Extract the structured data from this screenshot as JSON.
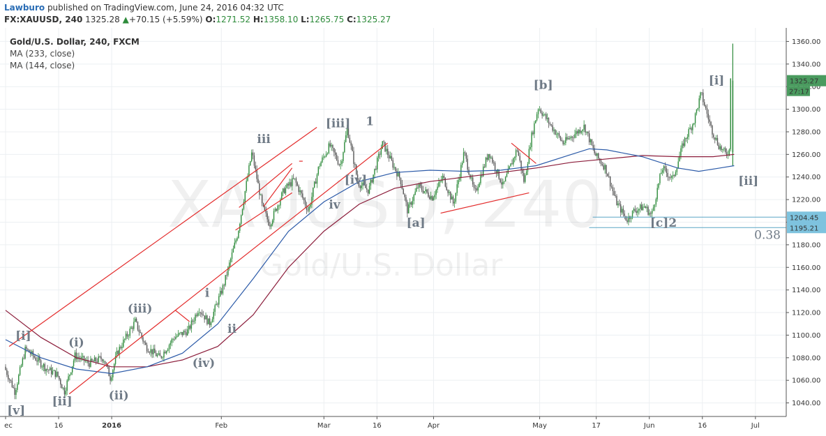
{
  "header": {
    "author": "Lawburo",
    "published_text": " published on TradingView.com, June 24, 2016 04:32 UTC",
    "symbol": "FX:XAUUSD, 240",
    "last": "1325.28",
    "change": "+70.15 (+5.59%)",
    "open_label": "O:",
    "open": "1271.52",
    "high_label": "H:",
    "high": "1358.10",
    "low_label": "L:",
    "low": "1265.75",
    "close_label": "C:",
    "close": "1325.27"
  },
  "legend": {
    "title": "Gold/U.S. Dollar, 240, FXCM",
    "ma1": "MA (233, close)",
    "ma2": "MA (144, close)"
  },
  "watermark": {
    "symbol": "XAUUSD, 240",
    "name": "Gold/U.S. Dollar"
  },
  "colors": {
    "candle_up": "#2e8b3b",
    "candle_down": "#555555",
    "ma233": "#8b1c3a",
    "ma144": "#2b5aa8",
    "trend": "#e32b2b",
    "level": "#5aa6c6",
    "price_tag": "#4a9b5f",
    "level_tag": "#7ec3de"
  },
  "chart_data": {
    "type": "candlestick",
    "title": "Gold/U.S. Dollar, 240, FXCM",
    "x_ticks": [
      {
        "label": "ec",
        "d": 0
      },
      {
        "label": "16",
        "d": 15
      },
      {
        "label": "2016",
        "d": 30
      },
      {
        "label": "Feb",
        "d": 61
      },
      {
        "label": "Mar",
        "d": 90
      },
      {
        "label": "16",
        "d": 105
      },
      {
        "label": "Apr",
        "d": 121
      },
      {
        "label": "May",
        "d": 151
      },
      {
        "label": "17",
        "d": 167
      },
      {
        "label": "Jun",
        "d": 182
      },
      {
        "label": "16",
        "d": 197
      },
      {
        "label": "Jul",
        "d": 212
      }
    ],
    "y_ticks": [
      1040,
      1060,
      1080,
      1100,
      1120,
      1140,
      1160,
      1180,
      1200,
      1220,
      1240,
      1260,
      1280,
      1300,
      1320,
      1340,
      1360
    ],
    "ylim": [
      1028,
      1372
    ],
    "xlim_days": [
      0,
      225
    ],
    "price_path": [
      [
        0,
        1072
      ],
      [
        3,
        1050
      ],
      [
        6,
        1088
      ],
      [
        12,
        1070
      ],
      [
        15,
        1065
      ],
      [
        17,
        1050
      ],
      [
        20,
        1082
      ],
      [
        24,
        1075
      ],
      [
        28,
        1080
      ],
      [
        30,
        1062
      ],
      [
        32,
        1085
      ],
      [
        37,
        1112
      ],
      [
        40,
        1090
      ],
      [
        44,
        1080
      ],
      [
        48,
        1098
      ],
      [
        52,
        1104
      ],
      [
        55,
        1124
      ],
      [
        58,
        1110
      ],
      [
        62,
        1144
      ],
      [
        66,
        1190
      ],
      [
        70,
        1262
      ],
      [
        73,
        1213
      ],
      [
        75,
        1198
      ],
      [
        79,
        1228
      ],
      [
        82,
        1238
      ],
      [
        86,
        1210
      ],
      [
        89,
        1250
      ],
      [
        92,
        1268
      ],
      [
        95,
        1250
      ],
      [
        97,
        1283
      ],
      [
        100,
        1235
      ],
      [
        103,
        1228
      ],
      [
        107,
        1270
      ],
      [
        110,
        1250
      ],
      [
        112,
        1238
      ],
      [
        114,
        1210
      ],
      [
        117,
        1232
      ],
      [
        121,
        1222
      ],
      [
        124,
        1240
      ],
      [
        127,
        1216
      ],
      [
        130,
        1262
      ],
      [
        133,
        1225
      ],
      [
        137,
        1262
      ],
      [
        141,
        1232
      ],
      [
        145,
        1265
      ],
      [
        147,
        1235
      ],
      [
        149,
        1275
      ],
      [
        151,
        1302
      ],
      [
        154,
        1288
      ],
      [
        158,
        1270
      ],
      [
        162,
        1280
      ],
      [
        164,
        1285
      ],
      [
        167,
        1260
      ],
      [
        170,
        1248
      ],
      [
        173,
        1218
      ],
      [
        176,
        1202
      ],
      [
        178,
        1210
      ],
      [
        181,
        1214
      ],
      [
        183,
        1206
      ],
      [
        186,
        1248
      ],
      [
        189,
        1238
      ],
      [
        192,
        1270
      ],
      [
        195,
        1290
      ],
      [
        197,
        1314
      ],
      [
        200,
        1282
      ],
      [
        202,
        1268
      ],
      [
        204,
        1260
      ],
      [
        205,
        1264
      ],
      [
        205.5,
        1358
      ],
      [
        205.7,
        1325
      ]
    ],
    "ma144": [
      [
        0,
        1096
      ],
      [
        10,
        1080
      ],
      [
        20,
        1070
      ],
      [
        30,
        1066
      ],
      [
        40,
        1072
      ],
      [
        50,
        1084
      ],
      [
        60,
        1110
      ],
      [
        70,
        1150
      ],
      [
        80,
        1192
      ],
      [
        90,
        1218
      ],
      [
        100,
        1236
      ],
      [
        110,
        1244
      ],
      [
        120,
        1246
      ],
      [
        130,
        1245
      ],
      [
        140,
        1246
      ],
      [
        150,
        1250
      ],
      [
        160,
        1260
      ],
      [
        165,
        1265
      ],
      [
        170,
        1264
      ],
      [
        180,
        1258
      ],
      [
        190,
        1248
      ],
      [
        196,
        1245
      ],
      [
        202,
        1248
      ],
      [
        206,
        1250
      ]
    ],
    "ma233": [
      [
        0,
        1122
      ],
      [
        10,
        1098
      ],
      [
        20,
        1080
      ],
      [
        30,
        1072
      ],
      [
        40,
        1072
      ],
      [
        50,
        1078
      ],
      [
        60,
        1090
      ],
      [
        70,
        1118
      ],
      [
        80,
        1160
      ],
      [
        90,
        1192
      ],
      [
        100,
        1216
      ],
      [
        110,
        1230
      ],
      [
        120,
        1236
      ],
      [
        130,
        1240
      ],
      [
        140,
        1244
      ],
      [
        150,
        1248
      ],
      [
        160,
        1253
      ],
      [
        170,
        1256
      ],
      [
        180,
        1259
      ],
      [
        190,
        1258
      ],
      [
        200,
        1258
      ],
      [
        206,
        1260
      ]
    ],
    "trendlines": [
      [
        [
          1,
          1090
        ],
        [
          88,
          1284
        ]
      ],
      [
        [
          18,
          1048
        ],
        [
          108,
          1270
        ]
      ],
      [
        [
          84,
          1254
        ],
        [
          83,
          1254
        ]
      ],
      [
        [
          65,
          1193
        ],
        [
          81,
          1226
        ]
      ],
      [
        [
          66,
          1213
        ],
        [
          81,
          1252
        ]
      ],
      [
        [
          73,
          1214
        ],
        [
          81,
          1248
        ]
      ],
      [
        [
          48,
          1122
        ],
        [
          52,
          1112
        ]
      ],
      [
        [
          123,
          1208
        ],
        [
          148,
          1226
        ]
      ],
      [
        [
          143,
          1270
        ],
        [
          150,
          1252
        ]
      ]
    ],
    "levels": [
      {
        "price": 1204.45,
        "from_day": 166,
        "label": "1204.45"
      },
      {
        "price": 1195.21,
        "from_day": 165,
        "label": "1195.21",
        "note": "0.38"
      }
    ],
    "last_price": {
      "price": 1325.27,
      "label": "1325.27",
      "timer": "27:17"
    },
    "wave_labels": [
      {
        "text": "[v]",
        "d": 3,
        "p": 1030
      },
      {
        "text": "[i]",
        "d": 5,
        "p": 1096
      },
      {
        "text": "[ii]",
        "d": 16,
        "p": 1038
      },
      {
        "text": "(i)",
        "d": 20,
        "p": 1090
      },
      {
        "text": "(ii)",
        "d": 32,
        "p": 1043
      },
      {
        "text": "(iii)",
        "d": 38,
        "p": 1120
      },
      {
        "text": "(iv)",
        "d": 56,
        "p": 1072
      },
      {
        "text": "i",
        "d": 57,
        "p": 1134
      },
      {
        "text": "ii",
        "d": 64,
        "p": 1102
      },
      {
        "text": "iii",
        "d": 73,
        "p": 1270
      },
      {
        "text": "iv",
        "d": 93,
        "p": 1212
      },
      {
        "text": "[iii]",
        "d": 94,
        "p": 1284
      },
      {
        "text": "1",
        "d": 103,
        "p": 1286
      },
      {
        "text": "[iv]",
        "d": 99,
        "p": 1234
      },
      {
        "text": "[a]",
        "d": 116,
        "p": 1196
      },
      {
        "text": "[b]",
        "d": 152,
        "p": 1318
      },
      {
        "text": "[c]2",
        "d": 186,
        "p": 1196
      },
      {
        "text": "[i]",
        "d": 201,
        "p": 1322
      },
      {
        "text": "[ii]",
        "d": 210,
        "p": 1233
      }
    ]
  }
}
